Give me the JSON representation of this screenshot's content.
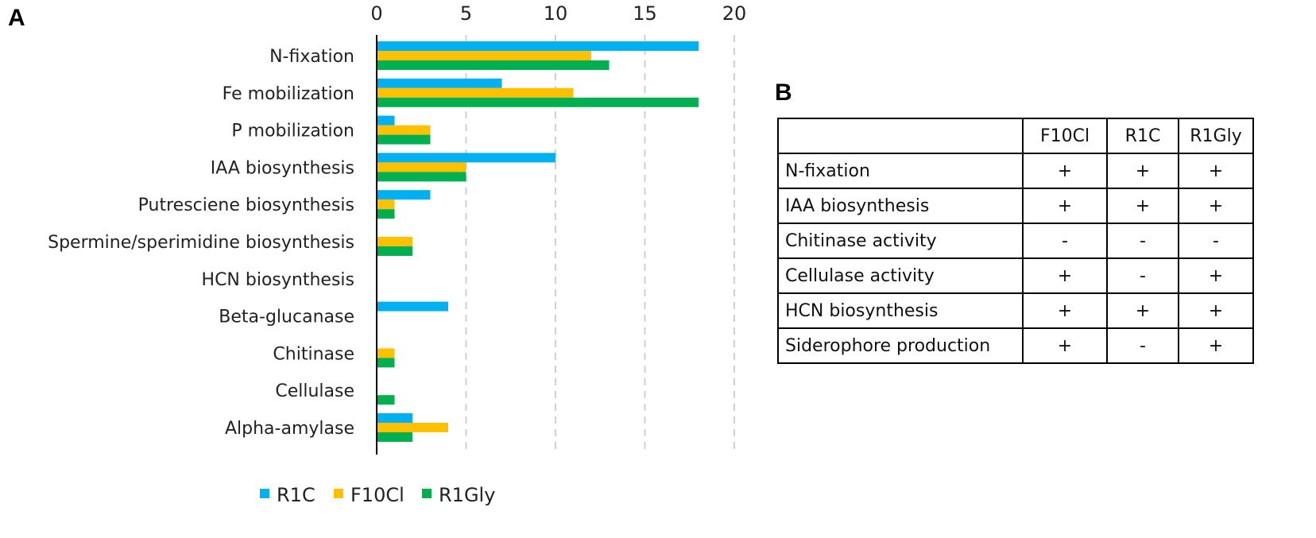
{
  "panel_a_label": "A",
  "panel_b_label": "B",
  "chart_data": {
    "type": "bar",
    "orientation": "horizontal",
    "categories": [
      "N-fixation",
      "Fe mobilization",
      "P mobilization",
      "IAA biosynthesis",
      "Putresciene biosynthesis",
      "Spermine/sperimidine biosynthesis",
      "HCN biosynthesis",
      "Beta-glucanase",
      "Chitinase",
      "Cellulase",
      "Alpha-amylase"
    ],
    "series": [
      {
        "name": "R1C",
        "color": "#00B0F0",
        "values": [
          18,
          7,
          1,
          10,
          3,
          0,
          0,
          4,
          0,
          0,
          2
        ]
      },
      {
        "name": "F10Cl",
        "color": "#FFC000",
        "values": [
          12,
          11,
          3,
          5,
          1,
          2,
          0,
          0,
          1,
          0,
          4
        ]
      },
      {
        "name": "R1Gly",
        "color": "#00B050",
        "values": [
          13,
          18,
          3,
          5,
          1,
          2,
          0,
          0,
          1,
          1,
          2
        ]
      }
    ],
    "xlim": [
      0,
      20
    ],
    "xticks": [
      "0",
      "5",
      "10",
      "15",
      "20"
    ],
    "xtick_values": [
      0,
      5,
      10,
      15,
      20
    ],
    "x_axis_position": "top",
    "grid": "vertical dashed",
    "legend_position": "bottom",
    "title": "",
    "xlabel": "",
    "ylabel": ""
  },
  "table": {
    "columns": [
      "",
      "F10Cl",
      "R1C",
      "R1Gly"
    ],
    "rows": [
      {
        "label": "N-fixation",
        "values": [
          "+",
          "+",
          "+"
        ]
      },
      {
        "label": "IAA biosynthesis",
        "values": [
          "+",
          "+",
          "+"
        ]
      },
      {
        "label": "Chitinase activity",
        "values": [
          "-",
          "-",
          "-"
        ]
      },
      {
        "label": "Cellulase activity",
        "values": [
          "+",
          "-",
          "+"
        ]
      },
      {
        "label": "HCN biosynthesis",
        "values": [
          "+",
          "+",
          "+"
        ]
      },
      {
        "label": "Siderophore production",
        "values": [
          "+",
          "-",
          "+"
        ]
      }
    ]
  }
}
